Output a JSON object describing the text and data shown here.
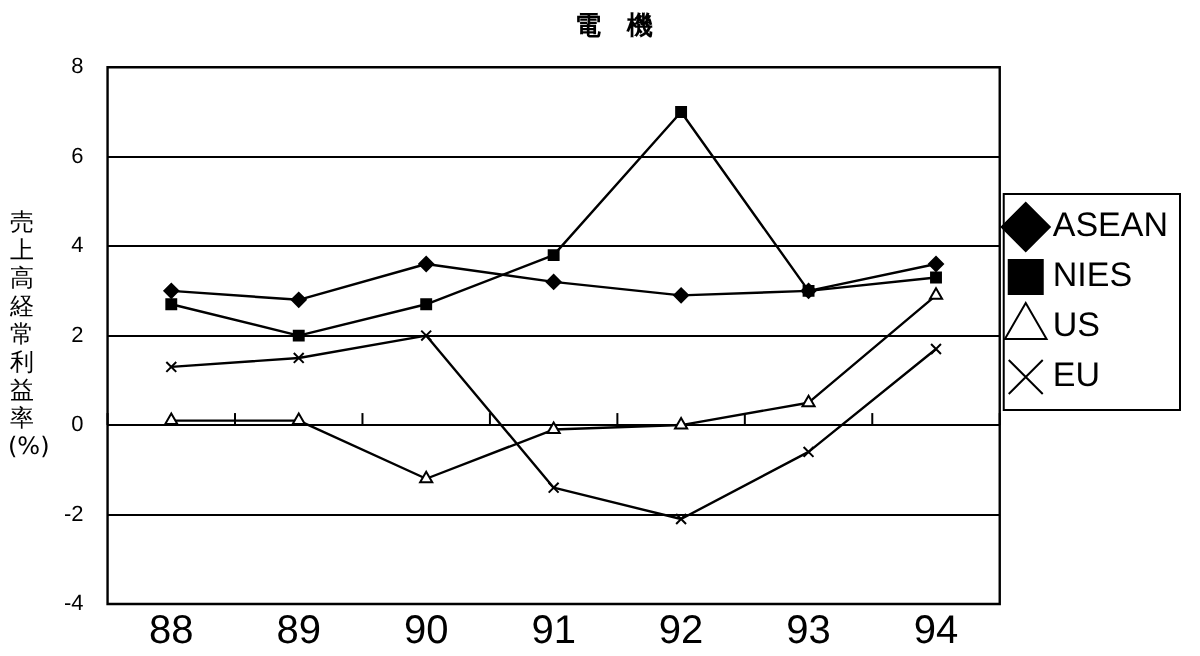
{
  "chart_data": {
    "type": "line",
    "title": "電　機",
    "ylabel": "売上高経常利益率(%)",
    "categories": [
      "88",
      "89",
      "90",
      "91",
      "92",
      "93",
      "94"
    ],
    "series": [
      {
        "name": "ASEAN",
        "color": "#000000",
        "marker": "diamond",
        "values": [
          3.0,
          2.8,
          3.6,
          3.2,
          2.9,
          3.0,
          3.6
        ]
      },
      {
        "name": "NIES",
        "color": "#000000",
        "marker": "square",
        "values": [
          2.7,
          2.0,
          2.7,
          3.8,
          7.0,
          3.0,
          3.3
        ]
      },
      {
        "name": "US",
        "color": "#000000",
        "marker": "triangle",
        "values": [
          0.1,
          0.1,
          -1.2,
          -0.1,
          0.0,
          0.5,
          2.9
        ]
      },
      {
        "name": "EU",
        "color": "#000000",
        "marker": "cross",
        "values": [
          1.3,
          1.5,
          2.0,
          -1.4,
          -2.1,
          -0.6,
          1.7
        ]
      }
    ],
    "ylim": [
      -4,
      8
    ],
    "yticks": [
      -4,
      -2,
      0,
      2,
      4,
      6,
      8
    ],
    "grid": "y",
    "legend": "right",
    "line_style": "solid"
  }
}
